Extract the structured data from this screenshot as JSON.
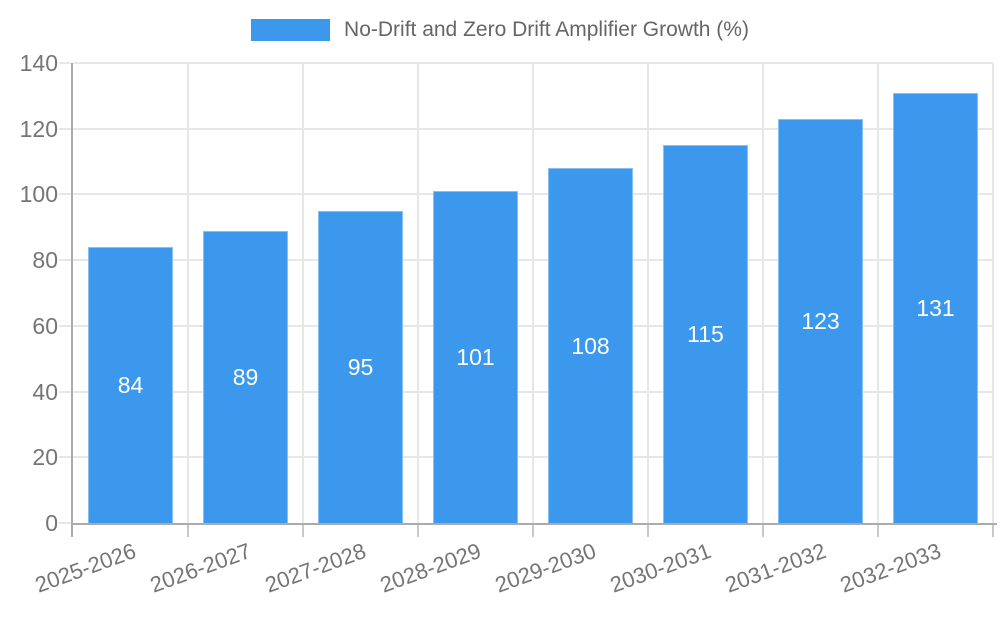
{
  "legend": {
    "label": "No-Drift and Zero Drift Amplifier Growth (%)"
  },
  "colors": {
    "bar": "#3b98ec",
    "bar_border": "#85c2f3",
    "grid": "#e7e7e7",
    "axis": "#ababab",
    "x_tick": "#c9c9c9",
    "axis_text": "#757575",
    "legend_text": "#666666",
    "value_text": "#ffffff"
  },
  "chart_data": {
    "type": "bar",
    "title": "No-Drift and Zero Drift Amplifier Growth (%)",
    "categories": [
      "2025-2026",
      "2026-2027",
      "2027-2028",
      "2028-2029",
      "2029-2030",
      "2030-2031",
      "2031-2032",
      "2032-2033"
    ],
    "values": [
      84,
      89,
      95,
      101,
      108,
      115,
      123,
      131
    ],
    "xlabel": "",
    "ylabel": "",
    "ylim": [
      0,
      140
    ],
    "ytick_step": 20,
    "yticks": [
      0,
      20,
      40,
      60,
      80,
      100,
      120,
      140
    ],
    "grid": true,
    "legend_position": "top-center",
    "bar_labels_inside": true,
    "x_label_rotation_deg": -20
  }
}
